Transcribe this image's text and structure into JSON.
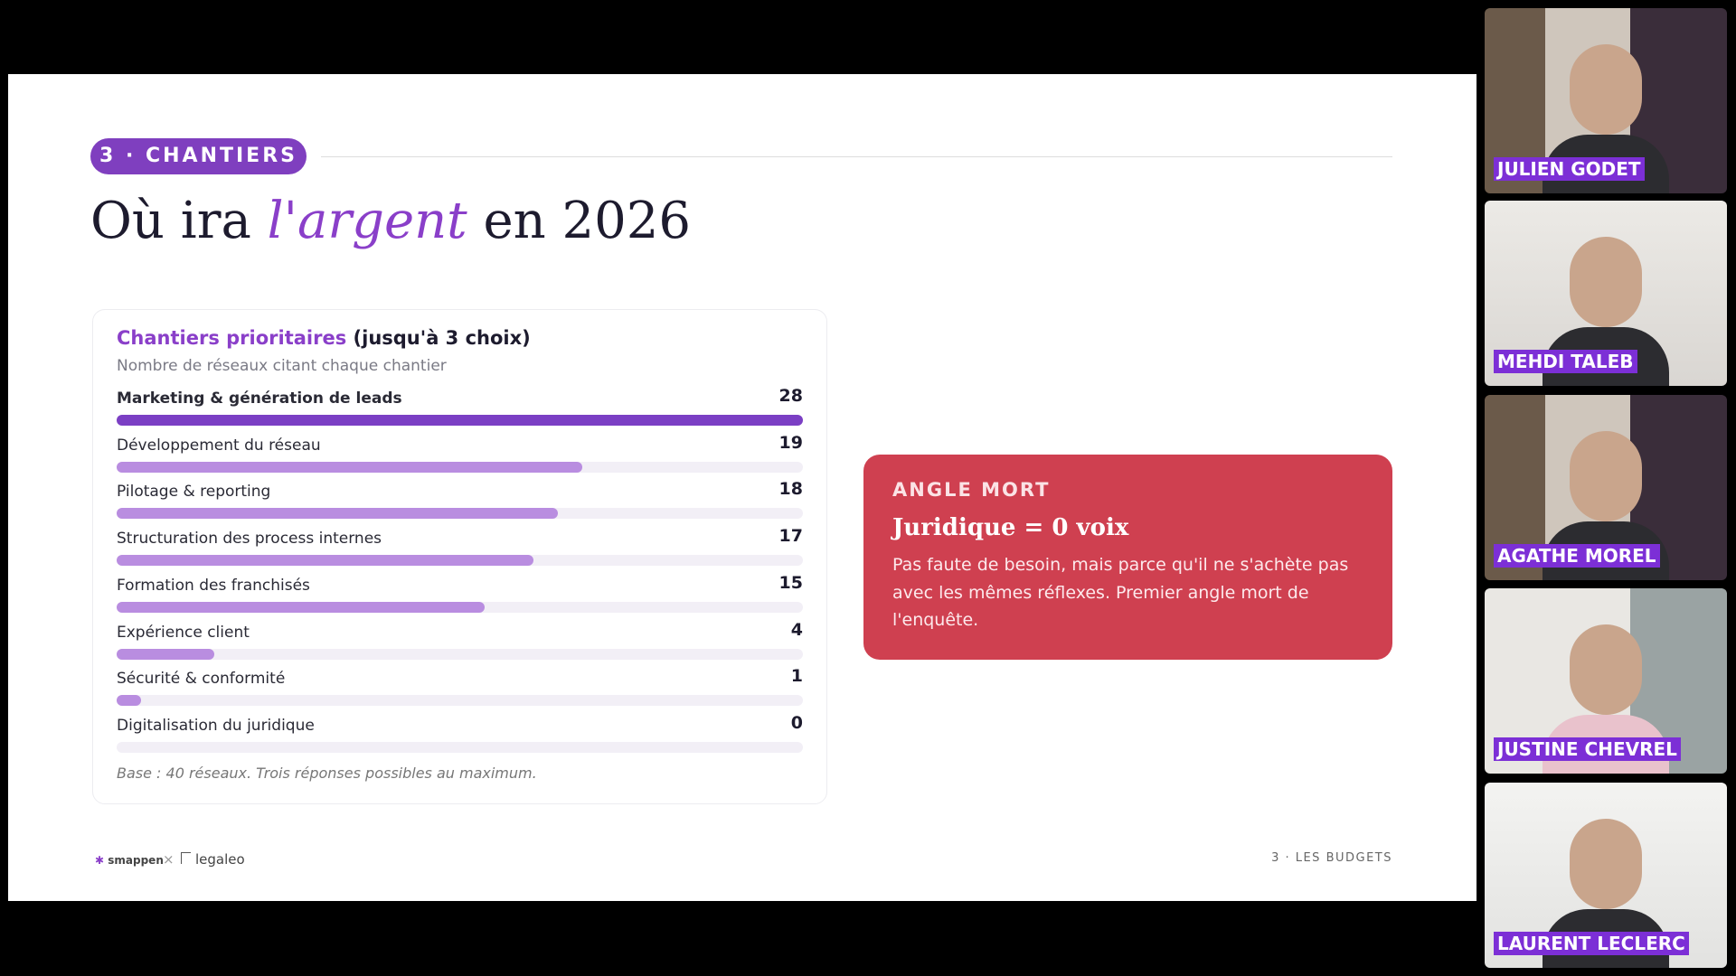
{
  "slide": {
    "tag": "3 · CHANTIERS",
    "title_parts": [
      "Où ira",
      "l'argent",
      "en 2026"
    ],
    "chart_data": {
      "type": "bar",
      "title_parts": [
        "Chantiers prioritaires",
        "(jusqu'à 3 choix)"
      ],
      "subtitle": "Nombre de réseaux citant chaque chantier",
      "categories": [
        "Marketing & génération de leads",
        "Développement du réseau",
        "Pilotage & reporting",
        "Structuration des process internes",
        "Formation des franchisés",
        "Expérience client",
        "Sécurité & conformité",
        "Digitalisation du juridique"
      ],
      "values": [
        28,
        19,
        18,
        17,
        15,
        4,
        1,
        0
      ],
      "colors": [
        "#7b3fc4",
        "#b98de0",
        "#b98de0",
        "#b98de0",
        "#b98de0",
        "#b98de0",
        "#b98de0",
        "#b98de0"
      ],
      "xlim": [
        0,
        28
      ],
      "note": "Base : 40 réseaux. Trois réponses possibles au maximum."
    },
    "callout": {
      "label": "ANGLE MORT",
      "heading": "Juridique = 0 voix",
      "body": "Pas faute de besoin, mais parce qu'il ne s'achète pas avec les mêmes réflexes. Premier angle mort de l'enquête."
    },
    "footer": {
      "logo_left": "smappen",
      "separator": "×",
      "logo_right": "legaleo",
      "section": "3 · LES BUDGETS"
    }
  },
  "participants": [
    "JULIEN GODET",
    "MEHDI TALEB",
    "AGATHE MOREL",
    "JUSTINE CHEVREL",
    "LAURENT LECLERC"
  ]
}
